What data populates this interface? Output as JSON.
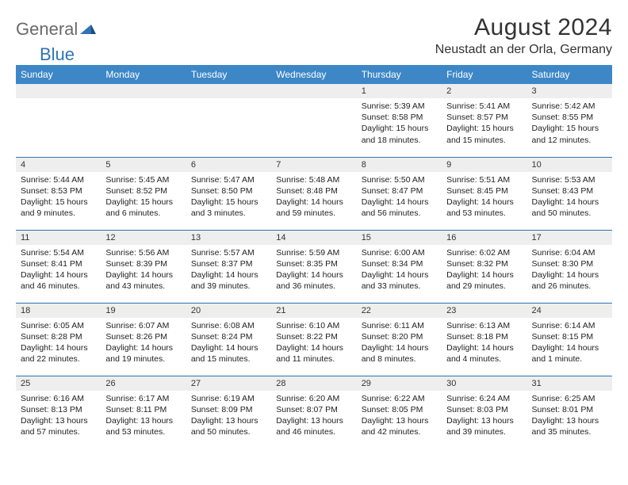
{
  "logo": {
    "general": "General",
    "blue": "Blue"
  },
  "title": "August 2024",
  "location": "Neustadt an der Orla, Germany",
  "colors": {
    "header_bg": "#3d87c7",
    "header_text": "#ffffff",
    "row_divider": "#2e74b5",
    "daynum_bg": "#eeeeee",
    "text": "#222222",
    "logo_gray": "#6a6a6a",
    "logo_blue": "#2e74b5"
  },
  "weekdays": [
    "Sunday",
    "Monday",
    "Tuesday",
    "Wednesday",
    "Thursday",
    "Friday",
    "Saturday"
  ],
  "weeks": [
    [
      null,
      null,
      null,
      null,
      {
        "n": "1",
        "sunrise": "5:39 AM",
        "sunset": "8:58 PM",
        "daylight": "15 hours and 18 minutes."
      },
      {
        "n": "2",
        "sunrise": "5:41 AM",
        "sunset": "8:57 PM",
        "daylight": "15 hours and 15 minutes."
      },
      {
        "n": "3",
        "sunrise": "5:42 AM",
        "sunset": "8:55 PM",
        "daylight": "15 hours and 12 minutes."
      }
    ],
    [
      {
        "n": "4",
        "sunrise": "5:44 AM",
        "sunset": "8:53 PM",
        "daylight": "15 hours and 9 minutes."
      },
      {
        "n": "5",
        "sunrise": "5:45 AM",
        "sunset": "8:52 PM",
        "daylight": "15 hours and 6 minutes."
      },
      {
        "n": "6",
        "sunrise": "5:47 AM",
        "sunset": "8:50 PM",
        "daylight": "15 hours and 3 minutes."
      },
      {
        "n": "7",
        "sunrise": "5:48 AM",
        "sunset": "8:48 PM",
        "daylight": "14 hours and 59 minutes."
      },
      {
        "n": "8",
        "sunrise": "5:50 AM",
        "sunset": "8:47 PM",
        "daylight": "14 hours and 56 minutes."
      },
      {
        "n": "9",
        "sunrise": "5:51 AM",
        "sunset": "8:45 PM",
        "daylight": "14 hours and 53 minutes."
      },
      {
        "n": "10",
        "sunrise": "5:53 AM",
        "sunset": "8:43 PM",
        "daylight": "14 hours and 50 minutes."
      }
    ],
    [
      {
        "n": "11",
        "sunrise": "5:54 AM",
        "sunset": "8:41 PM",
        "daylight": "14 hours and 46 minutes."
      },
      {
        "n": "12",
        "sunrise": "5:56 AM",
        "sunset": "8:39 PM",
        "daylight": "14 hours and 43 minutes."
      },
      {
        "n": "13",
        "sunrise": "5:57 AM",
        "sunset": "8:37 PM",
        "daylight": "14 hours and 39 minutes."
      },
      {
        "n": "14",
        "sunrise": "5:59 AM",
        "sunset": "8:35 PM",
        "daylight": "14 hours and 36 minutes."
      },
      {
        "n": "15",
        "sunrise": "6:00 AM",
        "sunset": "8:34 PM",
        "daylight": "14 hours and 33 minutes."
      },
      {
        "n": "16",
        "sunrise": "6:02 AM",
        "sunset": "8:32 PM",
        "daylight": "14 hours and 29 minutes."
      },
      {
        "n": "17",
        "sunrise": "6:04 AM",
        "sunset": "8:30 PM",
        "daylight": "14 hours and 26 minutes."
      }
    ],
    [
      {
        "n": "18",
        "sunrise": "6:05 AM",
        "sunset": "8:28 PM",
        "daylight": "14 hours and 22 minutes."
      },
      {
        "n": "19",
        "sunrise": "6:07 AM",
        "sunset": "8:26 PM",
        "daylight": "14 hours and 19 minutes."
      },
      {
        "n": "20",
        "sunrise": "6:08 AM",
        "sunset": "8:24 PM",
        "daylight": "14 hours and 15 minutes."
      },
      {
        "n": "21",
        "sunrise": "6:10 AM",
        "sunset": "8:22 PM",
        "daylight": "14 hours and 11 minutes."
      },
      {
        "n": "22",
        "sunrise": "6:11 AM",
        "sunset": "8:20 PM",
        "daylight": "14 hours and 8 minutes."
      },
      {
        "n": "23",
        "sunrise": "6:13 AM",
        "sunset": "8:18 PM",
        "daylight": "14 hours and 4 minutes."
      },
      {
        "n": "24",
        "sunrise": "6:14 AM",
        "sunset": "8:15 PM",
        "daylight": "14 hours and 1 minute."
      }
    ],
    [
      {
        "n": "25",
        "sunrise": "6:16 AM",
        "sunset": "8:13 PM",
        "daylight": "13 hours and 57 minutes."
      },
      {
        "n": "26",
        "sunrise": "6:17 AM",
        "sunset": "8:11 PM",
        "daylight": "13 hours and 53 minutes."
      },
      {
        "n": "27",
        "sunrise": "6:19 AM",
        "sunset": "8:09 PM",
        "daylight": "13 hours and 50 minutes."
      },
      {
        "n": "28",
        "sunrise": "6:20 AM",
        "sunset": "8:07 PM",
        "daylight": "13 hours and 46 minutes."
      },
      {
        "n": "29",
        "sunrise": "6:22 AM",
        "sunset": "8:05 PM",
        "daylight": "13 hours and 42 minutes."
      },
      {
        "n": "30",
        "sunrise": "6:24 AM",
        "sunset": "8:03 PM",
        "daylight": "13 hours and 39 minutes."
      },
      {
        "n": "31",
        "sunrise": "6:25 AM",
        "sunset": "8:01 PM",
        "daylight": "13 hours and 35 minutes."
      }
    ]
  ],
  "labels": {
    "sunrise": "Sunrise:",
    "sunset": "Sunset:",
    "daylight": "Daylight:"
  }
}
